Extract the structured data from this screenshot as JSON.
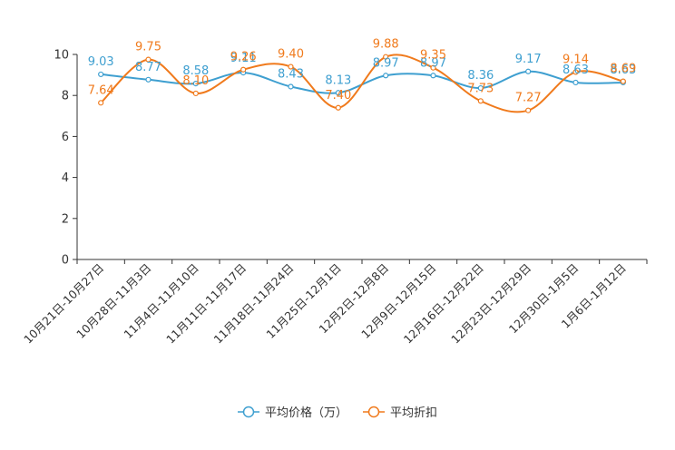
{
  "chart_data": {
    "type": "line",
    "title": "",
    "xlabel": "",
    "ylabel": "",
    "ylim": [
      0,
      10
    ],
    "yticks": [
      0,
      2,
      4,
      6,
      8,
      10
    ],
    "grid": false,
    "smooth": true,
    "legend_position": "bottom-center",
    "categories": [
      "10月21日-10月27日",
      "10月28日-11月3日",
      "11月4日-11月10日",
      "11月11日-11月17日",
      "11月18日-11月24日",
      "11月25日-12月1日",
      "12月2日-12月8日",
      "12月9日-12月15日",
      "12月16日-12月22日",
      "12月23日-12月29日",
      "12月30日-1月5日",
      "1月6日-1月12日"
    ],
    "series": [
      {
        "name": "平均价格（万）",
        "color": "#3e9fd0",
        "values": [
          9.03,
          8.77,
          8.58,
          9.11,
          8.43,
          8.13,
          8.97,
          8.97,
          8.36,
          9.17,
          8.63,
          8.63
        ]
      },
      {
        "name": "平均折扣",
        "color": "#f07a1c",
        "values": [
          7.64,
          9.75,
          8.1,
          9.26,
          9.4,
          7.4,
          9.88,
          9.35,
          7.73,
          7.27,
          9.14,
          8.69
        ]
      }
    ]
  }
}
